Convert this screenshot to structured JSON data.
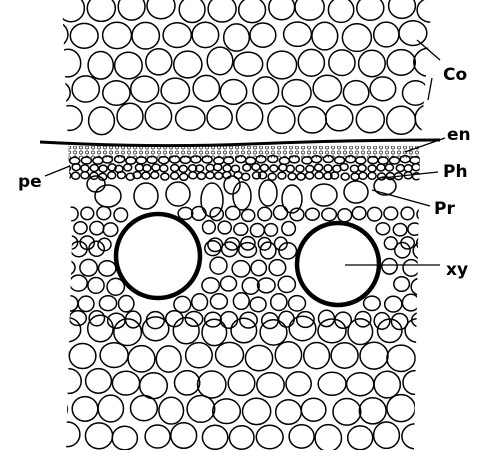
{
  "figure": {
    "labels": {
      "co": "Co",
      "en": "en",
      "ph": "Ph",
      "pr": "Pr",
      "pe": "pe",
      "xy": "xy"
    }
  }
}
